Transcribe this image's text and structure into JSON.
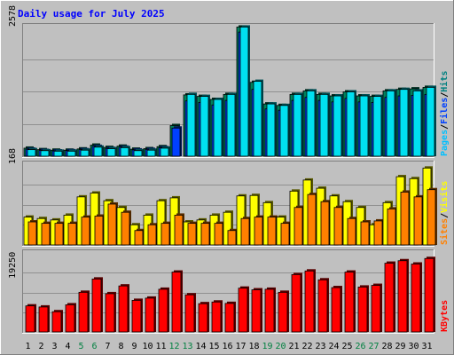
{
  "chart_data": {
    "type": "bar",
    "title": "Daily usage for July 2025",
    "categories": [
      "1",
      "2",
      "3",
      "4",
      "5",
      "6",
      "7",
      "8",
      "9",
      "10",
      "11",
      "12",
      "13",
      "14",
      "15",
      "16",
      "17",
      "18",
      "19",
      "20",
      "21",
      "22",
      "23",
      "24",
      "25",
      "26",
      "27",
      "28",
      "29",
      "30",
      "31"
    ],
    "weekend_days": [
      "5",
      "6",
      "12",
      "13",
      "19",
      "20",
      "26",
      "27"
    ],
    "panels": [
      {
        "id": "hits",
        "y_tick_label": "2578",
        "y_tick_value": 2578,
        "ylim": [
          0,
          2578
        ],
        "legend": [
          "Pages",
          "Files",
          "Hits"
        ],
        "legend_colors": [
          "#00c0ff",
          "#0040ff",
          "#008080"
        ],
        "series": [
          {
            "name": "Hits",
            "color": "#00805c",
            "values": [
              160,
              130,
              120,
              120,
              145,
              220,
              175,
              200,
              140,
              150,
              190,
              610,
              1220,
              1190,
              1130,
              1230,
              2570,
              1470,
              1040,
              1010,
              1230,
              1300,
              1230,
              1200,
              1280,
              1200,
              1190,
              1300,
              1330,
              1340,
              1370
            ]
          },
          {
            "name": "Files",
            "color": "#0040ff",
            "values": [
              140,
              115,
              105,
              110,
              130,
              195,
              155,
              180,
              125,
              135,
              170,
              560,
              1100,
              1070,
              1020,
              1110,
              2470,
              1330,
              940,
              915,
              1110,
              1170,
              1110,
              1080,
              1150,
              1080,
              1070,
              1170,
              1200,
              1210,
              1230
            ]
          },
          {
            "name": "Pages",
            "color": "#00e0f0",
            "values": [
              130,
              110,
              100,
              100,
              120,
              180,
              150,
              170,
              110,
              120,
              160,
              0,
              1230,
              1190,
              1130,
              1230,
              2570,
              1490,
              1040,
              1010,
              1230,
              1300,
              1230,
              1200,
              1280,
              1200,
              1190,
              1300,
              1330,
              1300,
              1370
            ]
          }
        ]
      },
      {
        "id": "visits",
        "y_tick_label": "168",
        "y_tick_value": 168,
        "ylim": [
          0,
          168
        ],
        "legend": [
          "Sites",
          "Visits"
        ],
        "legend_colors": [
          "#ff8000",
          "#ffff00"
        ],
        "series": [
          {
            "name": "Visits",
            "color": "#ffff00",
            "values": [
              58,
              55,
              52,
              62,
              100,
              108,
              92,
              78,
              42,
              62,
              92,
              98,
              48,
              52,
              62,
              68,
              102,
              103,
              88,
              58,
              112,
              135,
              118,
              102,
              90,
              78,
              42,
              88,
              142,
              138,
              160
            ]
          },
          {
            "name": "Sites",
            "color": "#ff8000",
            "values": [
              48,
              45,
              45,
              45,
              58,
              60,
              85,
              68,
              30,
              42,
              45,
              62,
              45,
              45,
              45,
              30,
              55,
              58,
              58,
              45,
              78,
              105,
              90,
              78,
              55,
              48,
              50,
              75,
              110,
              100,
              115
            ]
          }
        ]
      },
      {
        "id": "kbytes",
        "y_tick_label": "19250",
        "y_tick_value": 19250,
        "ylim": [
          0,
          28500
        ],
        "legend": [
          "KBytes"
        ],
        "legend_colors": [
          "#ff0000"
        ],
        "series": [
          {
            "name": "KBytes",
            "color": "#ff0000",
            "values": [
              9400,
              9000,
              7300,
              9800,
              14300,
              19100,
              13800,
              16600,
              11400,
              12200,
              15400,
              21600,
              13400,
              10200,
              10800,
              10300,
              15800,
              15200,
              15400,
              14300,
              20700,
              22000,
              18800,
              16000,
              21600,
              16200,
              16800,
              24800,
              25700,
              24500,
              26500
            ]
          }
        ]
      }
    ]
  }
}
